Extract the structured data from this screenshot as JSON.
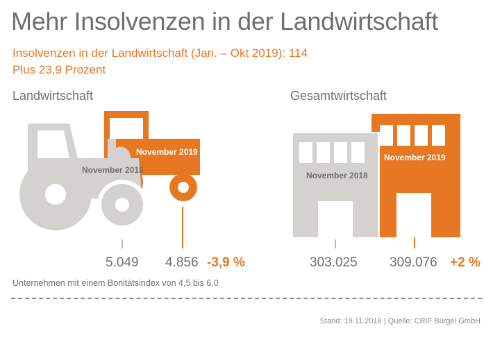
{
  "title": "Mehr Insolvenzen in der Landwirtschaft",
  "subtitle_line1": "Insolvenzen in der Landwirtschaft (Jan. – Okt 2019): 114",
  "subtitle_line2": "Plus 23,9 Prozent",
  "colors": {
    "accent": "#e87722",
    "grey": "#d3d2cf",
    "text": "#6f6f6f"
  },
  "left": {
    "heading": "Landwirtschaft",
    "icon": "tractor-icon",
    "label_2018": "November 2018",
    "label_2019": "November 2019",
    "value_2018": "5.049",
    "value_2019": "4.856",
    "change": "-3,9 %"
  },
  "right": {
    "heading": "Gesamtwirtschaft",
    "icon": "building-icon",
    "label_2018": "November 2018",
    "label_2019": "November 2019",
    "value_2018": "303.025",
    "value_2019": "309.076",
    "change": "+2 %"
  },
  "footnote": "Unternehmen mit einem Bonitätsindex von 4,5 bis 6,0",
  "source": "Stand: 19.11.2018 | Quelle: CRIF Bürgel GmbH"
}
